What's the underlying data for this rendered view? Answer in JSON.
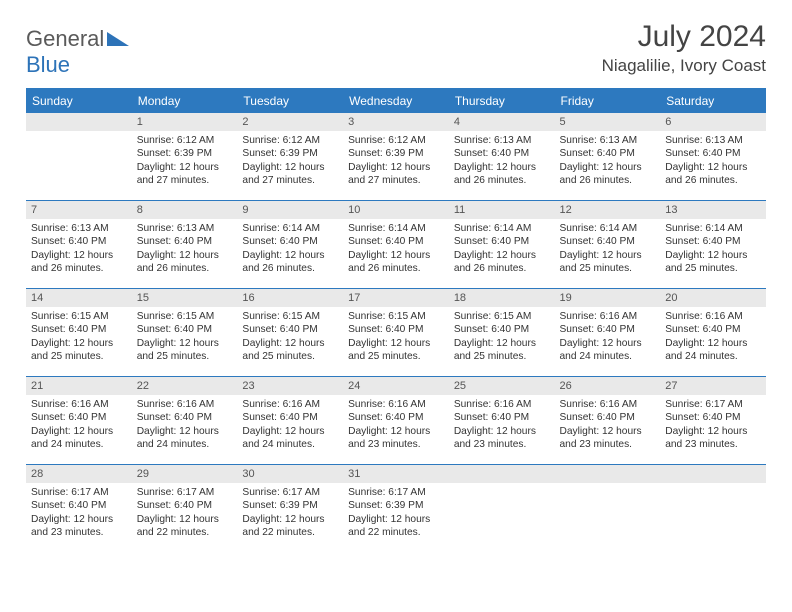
{
  "logo": {
    "word1": "General",
    "word2": "Blue"
  },
  "title": "July 2024",
  "location": "Niagalilie, Ivory Coast",
  "colors": {
    "header_bg": "#2d79bf",
    "header_fg": "#ffffff",
    "daynum_bg": "#e9e9e9",
    "border": "#2d79bf",
    "logo_gray": "#5a5a5a",
    "logo_blue": "#2d73b8"
  },
  "weekdays": [
    "Sunday",
    "Monday",
    "Tuesday",
    "Wednesday",
    "Thursday",
    "Friday",
    "Saturday"
  ],
  "weeks": [
    [
      {
        "day": "",
        "sunrise": "",
        "sunset": "",
        "daylight": ""
      },
      {
        "day": "1",
        "sunrise": "Sunrise: 6:12 AM",
        "sunset": "Sunset: 6:39 PM",
        "daylight": "Daylight: 12 hours and 27 minutes."
      },
      {
        "day": "2",
        "sunrise": "Sunrise: 6:12 AM",
        "sunset": "Sunset: 6:39 PM",
        "daylight": "Daylight: 12 hours and 27 minutes."
      },
      {
        "day": "3",
        "sunrise": "Sunrise: 6:12 AM",
        "sunset": "Sunset: 6:39 PM",
        "daylight": "Daylight: 12 hours and 27 minutes."
      },
      {
        "day": "4",
        "sunrise": "Sunrise: 6:13 AM",
        "sunset": "Sunset: 6:40 PM",
        "daylight": "Daylight: 12 hours and 26 minutes."
      },
      {
        "day": "5",
        "sunrise": "Sunrise: 6:13 AM",
        "sunset": "Sunset: 6:40 PM",
        "daylight": "Daylight: 12 hours and 26 minutes."
      },
      {
        "day": "6",
        "sunrise": "Sunrise: 6:13 AM",
        "sunset": "Sunset: 6:40 PM",
        "daylight": "Daylight: 12 hours and 26 minutes."
      }
    ],
    [
      {
        "day": "7",
        "sunrise": "Sunrise: 6:13 AM",
        "sunset": "Sunset: 6:40 PM",
        "daylight": "Daylight: 12 hours and 26 minutes."
      },
      {
        "day": "8",
        "sunrise": "Sunrise: 6:13 AM",
        "sunset": "Sunset: 6:40 PM",
        "daylight": "Daylight: 12 hours and 26 minutes."
      },
      {
        "day": "9",
        "sunrise": "Sunrise: 6:14 AM",
        "sunset": "Sunset: 6:40 PM",
        "daylight": "Daylight: 12 hours and 26 minutes."
      },
      {
        "day": "10",
        "sunrise": "Sunrise: 6:14 AM",
        "sunset": "Sunset: 6:40 PM",
        "daylight": "Daylight: 12 hours and 26 minutes."
      },
      {
        "day": "11",
        "sunrise": "Sunrise: 6:14 AM",
        "sunset": "Sunset: 6:40 PM",
        "daylight": "Daylight: 12 hours and 26 minutes."
      },
      {
        "day": "12",
        "sunrise": "Sunrise: 6:14 AM",
        "sunset": "Sunset: 6:40 PM",
        "daylight": "Daylight: 12 hours and 25 minutes."
      },
      {
        "day": "13",
        "sunrise": "Sunrise: 6:14 AM",
        "sunset": "Sunset: 6:40 PM",
        "daylight": "Daylight: 12 hours and 25 minutes."
      }
    ],
    [
      {
        "day": "14",
        "sunrise": "Sunrise: 6:15 AM",
        "sunset": "Sunset: 6:40 PM",
        "daylight": "Daylight: 12 hours and 25 minutes."
      },
      {
        "day": "15",
        "sunrise": "Sunrise: 6:15 AM",
        "sunset": "Sunset: 6:40 PM",
        "daylight": "Daylight: 12 hours and 25 minutes."
      },
      {
        "day": "16",
        "sunrise": "Sunrise: 6:15 AM",
        "sunset": "Sunset: 6:40 PM",
        "daylight": "Daylight: 12 hours and 25 minutes."
      },
      {
        "day": "17",
        "sunrise": "Sunrise: 6:15 AM",
        "sunset": "Sunset: 6:40 PM",
        "daylight": "Daylight: 12 hours and 25 minutes."
      },
      {
        "day": "18",
        "sunrise": "Sunrise: 6:15 AM",
        "sunset": "Sunset: 6:40 PM",
        "daylight": "Daylight: 12 hours and 25 minutes."
      },
      {
        "day": "19",
        "sunrise": "Sunrise: 6:16 AM",
        "sunset": "Sunset: 6:40 PM",
        "daylight": "Daylight: 12 hours and 24 minutes."
      },
      {
        "day": "20",
        "sunrise": "Sunrise: 6:16 AM",
        "sunset": "Sunset: 6:40 PM",
        "daylight": "Daylight: 12 hours and 24 minutes."
      }
    ],
    [
      {
        "day": "21",
        "sunrise": "Sunrise: 6:16 AM",
        "sunset": "Sunset: 6:40 PM",
        "daylight": "Daylight: 12 hours and 24 minutes."
      },
      {
        "day": "22",
        "sunrise": "Sunrise: 6:16 AM",
        "sunset": "Sunset: 6:40 PM",
        "daylight": "Daylight: 12 hours and 24 minutes."
      },
      {
        "day": "23",
        "sunrise": "Sunrise: 6:16 AM",
        "sunset": "Sunset: 6:40 PM",
        "daylight": "Daylight: 12 hours and 24 minutes."
      },
      {
        "day": "24",
        "sunrise": "Sunrise: 6:16 AM",
        "sunset": "Sunset: 6:40 PM",
        "daylight": "Daylight: 12 hours and 23 minutes."
      },
      {
        "day": "25",
        "sunrise": "Sunrise: 6:16 AM",
        "sunset": "Sunset: 6:40 PM",
        "daylight": "Daylight: 12 hours and 23 minutes."
      },
      {
        "day": "26",
        "sunrise": "Sunrise: 6:16 AM",
        "sunset": "Sunset: 6:40 PM",
        "daylight": "Daylight: 12 hours and 23 minutes."
      },
      {
        "day": "27",
        "sunrise": "Sunrise: 6:17 AM",
        "sunset": "Sunset: 6:40 PM",
        "daylight": "Daylight: 12 hours and 23 minutes."
      }
    ],
    [
      {
        "day": "28",
        "sunrise": "Sunrise: 6:17 AM",
        "sunset": "Sunset: 6:40 PM",
        "daylight": "Daylight: 12 hours and 23 minutes."
      },
      {
        "day": "29",
        "sunrise": "Sunrise: 6:17 AM",
        "sunset": "Sunset: 6:40 PM",
        "daylight": "Daylight: 12 hours and 22 minutes."
      },
      {
        "day": "30",
        "sunrise": "Sunrise: 6:17 AM",
        "sunset": "Sunset: 6:39 PM",
        "daylight": "Daylight: 12 hours and 22 minutes."
      },
      {
        "day": "31",
        "sunrise": "Sunrise: 6:17 AM",
        "sunset": "Sunset: 6:39 PM",
        "daylight": "Daylight: 12 hours and 22 minutes."
      },
      {
        "day": "",
        "sunrise": "",
        "sunset": "",
        "daylight": ""
      },
      {
        "day": "",
        "sunrise": "",
        "sunset": "",
        "daylight": ""
      },
      {
        "day": "",
        "sunrise": "",
        "sunset": "",
        "daylight": ""
      }
    ]
  ]
}
